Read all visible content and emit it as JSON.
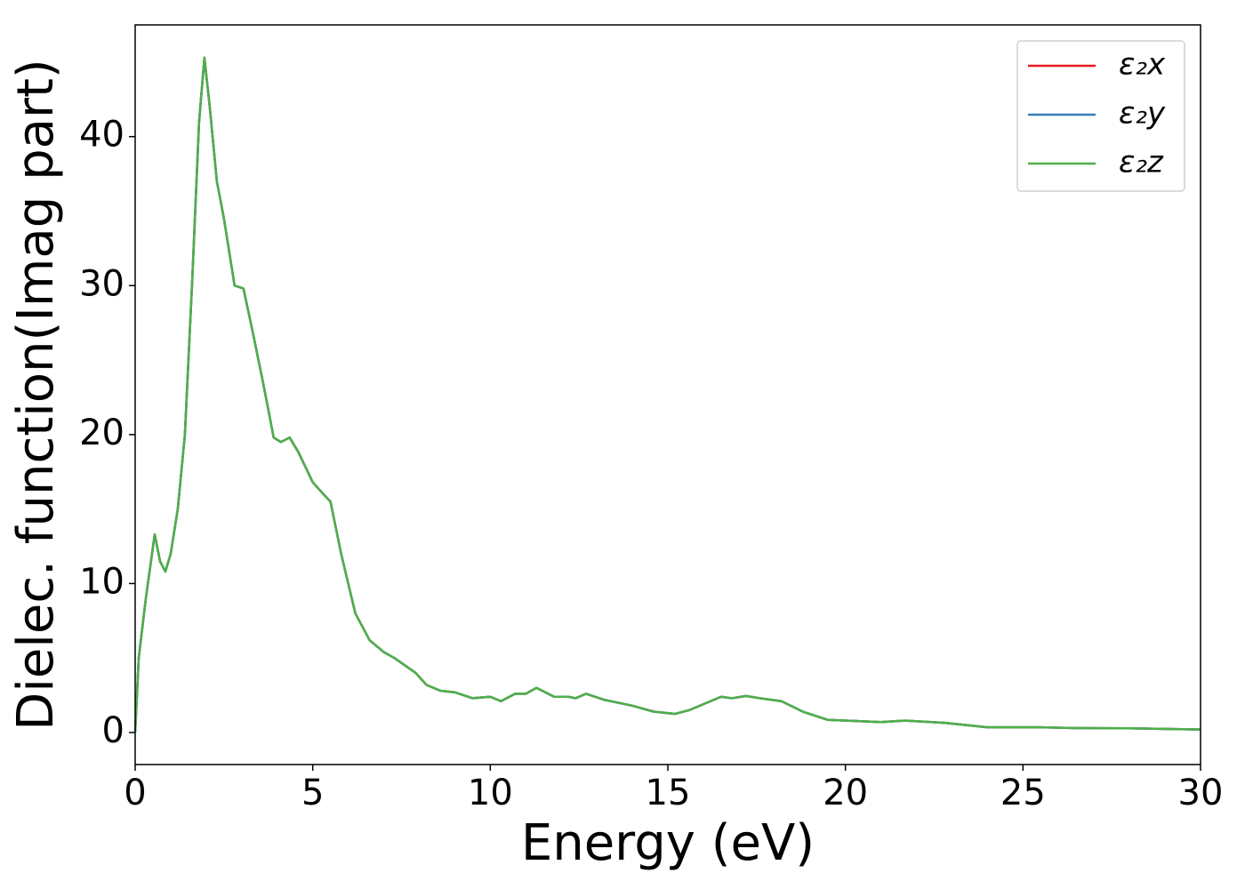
{
  "chart_data": {
    "type": "line",
    "xlabel": "Energy (eV)",
    "ylabel": "Dielec. function(Imag part)",
    "x": [
      0,
      0.1,
      0.3,
      0.55,
      0.7,
      0.85,
      1.0,
      1.2,
      1.4,
      1.6,
      1.8,
      1.95,
      2.1,
      2.3,
      2.5,
      2.8,
      3.05,
      3.3,
      3.6,
      3.9,
      4.1,
      4.35,
      4.6,
      5.0,
      5.3,
      5.5,
      5.8,
      6.2,
      6.6,
      7.0,
      7.3,
      7.6,
      7.9,
      8.2,
      8.6,
      9.0,
      9.5,
      10.0,
      10.3,
      10.7,
      11.0,
      11.3,
      11.8,
      12.2,
      12.4,
      12.7,
      13.2,
      14.0,
      14.6,
      15.2,
      15.6,
      16.2,
      16.5,
      16.8,
      17.2,
      17.6,
      18.2,
      18.8,
      19.5,
      20.5,
      21.0,
      21.7,
      22.8,
      24.0,
      25.5,
      26.5,
      28.0,
      30.0
    ],
    "series": [
      {
        "name": "ε₂x",
        "color": "#e41a1c",
        "values": [
          0,
          5,
          9,
          13.3,
          11.5,
          10.8,
          12,
          15,
          20,
          30,
          41,
          45.3,
          42,
          37,
          34.5,
          30,
          29.8,
          27,
          23.5,
          19.8,
          19.5,
          19.8,
          18.8,
          16.8,
          16,
          15.5,
          12,
          8,
          6.2,
          5.4,
          5.0,
          4.5,
          4.0,
          3.2,
          2.8,
          2.7,
          2.3,
          2.4,
          2.1,
          2.6,
          2.6,
          3.0,
          2.4,
          2.4,
          2.3,
          2.6,
          2.2,
          1.8,
          1.4,
          1.25,
          1.5,
          2.1,
          2.4,
          2.3,
          2.45,
          2.3,
          2.1,
          1.4,
          0.85,
          0.75,
          0.7,
          0.8,
          0.65,
          0.35,
          0.35,
          0.3,
          0.28,
          0.2
        ]
      },
      {
        "name": "ε₂y",
        "color": "#377eb8",
        "values": [
          0,
          5,
          9,
          13.3,
          11.5,
          10.8,
          12,
          15,
          20,
          30,
          41,
          45.3,
          42,
          37,
          34.5,
          30,
          29.8,
          27,
          23.5,
          19.8,
          19.5,
          19.8,
          18.8,
          16.8,
          16,
          15.5,
          12,
          8,
          6.2,
          5.4,
          5.0,
          4.5,
          4.0,
          3.2,
          2.8,
          2.7,
          2.3,
          2.4,
          2.1,
          2.6,
          2.6,
          3.0,
          2.4,
          2.4,
          2.3,
          2.6,
          2.2,
          1.8,
          1.4,
          1.25,
          1.5,
          2.1,
          2.4,
          2.3,
          2.45,
          2.3,
          2.1,
          1.4,
          0.85,
          0.75,
          0.7,
          0.8,
          0.65,
          0.35,
          0.35,
          0.3,
          0.28,
          0.2
        ]
      },
      {
        "name": "ε₂z",
        "color": "#4daf4a",
        "values": [
          0,
          5,
          9,
          13.3,
          11.5,
          10.8,
          12,
          15,
          20,
          30,
          41,
          45.3,
          42,
          37,
          34.5,
          30,
          29.8,
          27,
          23.5,
          19.8,
          19.5,
          19.8,
          18.8,
          16.8,
          16,
          15.5,
          12,
          8,
          6.2,
          5.4,
          5.0,
          4.5,
          4.0,
          3.2,
          2.8,
          2.7,
          2.3,
          2.4,
          2.1,
          2.6,
          2.6,
          3.0,
          2.4,
          2.4,
          2.3,
          2.6,
          2.2,
          1.8,
          1.4,
          1.25,
          1.5,
          2.1,
          2.4,
          2.3,
          2.45,
          2.3,
          2.1,
          1.4,
          0.85,
          0.75,
          0.7,
          0.8,
          0.65,
          0.35,
          0.35,
          0.3,
          0.28,
          0.2
        ]
      }
    ],
    "xlim": [
      0,
      30
    ],
    "xticks": [
      0,
      5,
      10,
      15,
      20,
      25,
      30
    ],
    "ylim": [
      -2.15,
      47.5
    ],
    "yticks": [
      0,
      10,
      20,
      30,
      40
    ],
    "legend": "upper right",
    "grid": false
  }
}
